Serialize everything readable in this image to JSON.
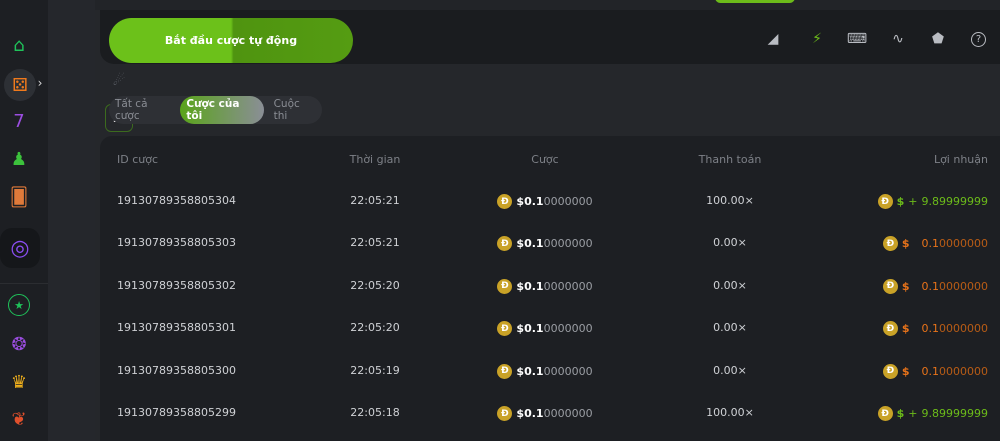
{
  "auto_bet_button": "Bắt đầu cược tự động",
  "tabs": [
    "Tất cả cược",
    "Cược của tôi",
    "Cuộc thi"
  ],
  "active_tab": "Cược của tôi",
  "toolbar_icons": [
    "volume-icon",
    "lightning-icon",
    "keyboard-icon",
    "graph-icon",
    "acorn-icon",
    "help-icon"
  ],
  "columns": [
    "ID cược",
    "Thời gian",
    "Cược",
    "Thanh toán",
    "Lợi nhuận"
  ],
  "currency_symbol": "$",
  "coin_letter": "Đ",
  "rows": [
    {
      "id": "19130789358805304",
      "time": "22:05:21",
      "bet_main": "0.1",
      "bet_rest": "0000000",
      "payout": "100.00×",
      "profit_sign": "+",
      "profit_main": "9.89999999",
      "profit_rest": "",
      "win": true
    },
    {
      "id": "19130789358805303",
      "time": "22:05:21",
      "bet_main": "0.1",
      "bet_rest": "0000000",
      "payout": "0.00×",
      "profit_sign": "",
      "profit_main": "0.1",
      "profit_rest": "0000000",
      "win": false
    },
    {
      "id": "19130789358805302",
      "time": "22:05:20",
      "bet_main": "0.1",
      "bet_rest": "0000000",
      "payout": "0.00×",
      "profit_sign": "",
      "profit_main": "0.1",
      "profit_rest": "0000000",
      "win": false
    },
    {
      "id": "19130789358805301",
      "time": "22:05:20",
      "bet_main": "0.1",
      "bet_rest": "0000000",
      "payout": "0.00×",
      "profit_sign": "",
      "profit_main": "0.1",
      "profit_rest": "0000000",
      "win": false
    },
    {
      "id": "19130789358805300",
      "time": "22:05:19",
      "bet_main": "0.1",
      "bet_rest": "0000000",
      "payout": "0.00×",
      "profit_sign": "",
      "profit_main": "0.1",
      "profit_rest": "0000000",
      "win": false
    },
    {
      "id": "19130789358805299",
      "time": "22:05:18",
      "bet_main": "0.1",
      "bet_rest": "0000000",
      "payout": "100.00×",
      "profit_sign": "+",
      "profit_main": "9.89999999",
      "profit_rest": "",
      "win": true
    }
  ],
  "colors": {
    "accent": "#6cbb1a",
    "loss": "#e8731a",
    "background": "#1d1f23"
  }
}
